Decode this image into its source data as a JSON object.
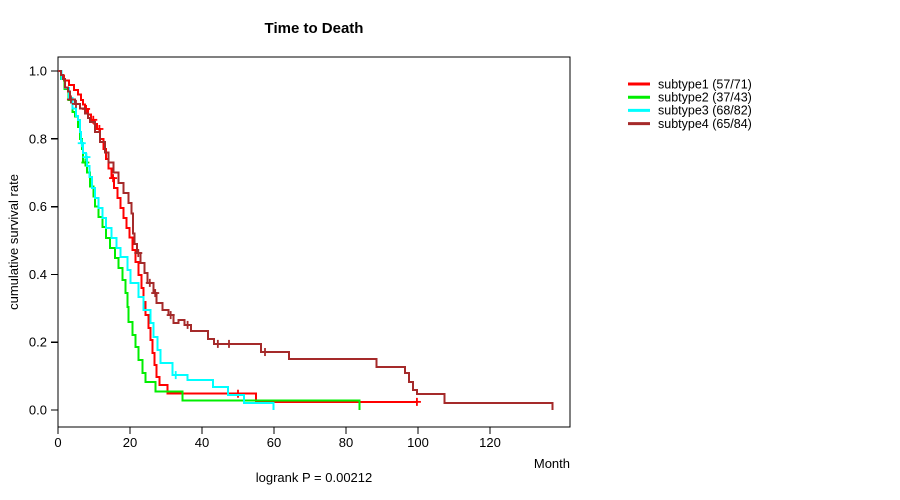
{
  "title": "Time to Death",
  "annotation": "logrank P = 0.00212",
  "axes": {
    "x_label": "Month",
    "y_label": "cumulative survival rate",
    "x_ticks": [
      0,
      20,
      40,
      60,
      80,
      100,
      120
    ],
    "y_ticks": [
      "0.0",
      "0.2",
      "0.4",
      "0.6",
      "0.8",
      "1.0"
    ]
  },
  "legend": [
    {
      "label": "subtype1 (57/71)",
      "color": "#FF0000"
    },
    {
      "label": "subtype2 (37/43)",
      "color": "#00EE00"
    },
    {
      "label": "subtype3 (68/82)",
      "color": "#00FFFF"
    },
    {
      "label": "subtype4 (65/84)",
      "color": "#A52A2A"
    }
  ],
  "chart_data": {
    "type": "line",
    "variant": "kaplan-meier-step",
    "title": "Time to Death",
    "xlabel": "Month",
    "ylabel": "cumulative survival rate",
    "xlim": [
      0,
      142
    ],
    "ylim": [
      0,
      1
    ],
    "grid": false,
    "legend_position": "outside-top-right",
    "series": [
      {
        "name": "subtype1",
        "events": "57/71",
        "color": "#FF0000",
        "points": [
          [
            0,
            1.0
          ],
          [
            0.8,
            0.986
          ],
          [
            1.7,
            0.972
          ],
          [
            3.1,
            0.958
          ],
          [
            4.5,
            0.944
          ],
          [
            5.6,
            0.93
          ],
          [
            6.4,
            0.915
          ],
          [
            7.0,
            0.901
          ],
          [
            7.5,
            0.888
          ],
          [
            8.4,
            0.872
          ],
          [
            9.2,
            0.856
          ],
          [
            10.1,
            0.843
          ],
          [
            10.9,
            0.829
          ],
          [
            11.7,
            0.8
          ],
          [
            12.6,
            0.77
          ],
          [
            13.4,
            0.741
          ],
          [
            14.0,
            0.712
          ],
          [
            14.8,
            0.684
          ],
          [
            15.6,
            0.655
          ],
          [
            16.5,
            0.625
          ],
          [
            17.3,
            0.596
          ],
          [
            18.2,
            0.566
          ],
          [
            19.0,
            0.537
          ],
          [
            19.8,
            0.509
          ],
          [
            20.7,
            0.472
          ],
          [
            21.5,
            0.437
          ],
          [
            22.3,
            0.398
          ],
          [
            23.2,
            0.36
          ],
          [
            23.7,
            0.319
          ],
          [
            24.3,
            0.28
          ],
          [
            25.1,
            0.242
          ],
          [
            25.7,
            0.207
          ],
          [
            26.2,
            0.168
          ],
          [
            26.8,
            0.133
          ],
          [
            27.4,
            0.097
          ],
          [
            28.2,
            0.074
          ],
          [
            30.4,
            0.048
          ],
          [
            55.0,
            0.024
          ],
          [
            99.7,
            0.024
          ]
        ],
        "censors": [
          [
            7.8,
            0.888
          ],
          [
            9.8,
            0.856
          ],
          [
            11.5,
            0.829
          ],
          [
            15.3,
            0.684
          ],
          [
            50.0,
            0.048
          ],
          [
            99.7,
            0.024
          ]
        ]
      },
      {
        "name": "subtype2",
        "events": "37/43",
        "color": "#00EE00",
        "points": [
          [
            0,
            1.0
          ],
          [
            0.9,
            0.977
          ],
          [
            1.8,
            0.947
          ],
          [
            2.9,
            0.914
          ],
          [
            4.0,
            0.879
          ],
          [
            4.7,
            0.866
          ],
          [
            5.6,
            0.835
          ],
          [
            6.1,
            0.8
          ],
          [
            6.7,
            0.77
          ],
          [
            7.0,
            0.73
          ],
          [
            8.1,
            0.7
          ],
          [
            8.9,
            0.66
          ],
          [
            9.8,
            0.63
          ],
          [
            10.3,
            0.6
          ],
          [
            11.2,
            0.57
          ],
          [
            12.3,
            0.54
          ],
          [
            13.4,
            0.508
          ],
          [
            14.5,
            0.478
          ],
          [
            15.9,
            0.448
          ],
          [
            16.8,
            0.419
          ],
          [
            17.9,
            0.384
          ],
          [
            18.7,
            0.345
          ],
          [
            19.3,
            0.304
          ],
          [
            19.6,
            0.26
          ],
          [
            20.7,
            0.221
          ],
          [
            21.5,
            0.186
          ],
          [
            22.3,
            0.147
          ],
          [
            23.5,
            0.109
          ],
          [
            24.3,
            0.083
          ],
          [
            27.1,
            0.055
          ],
          [
            34.6,
            0.028
          ],
          [
            83.8,
            0.0
          ]
        ],
        "censors": [
          [
            7.6,
            0.73
          ]
        ]
      },
      {
        "name": "subtype3",
        "events": "68/82",
        "color": "#00FFFF",
        "points": [
          [
            0,
            1.0
          ],
          [
            1.0,
            0.976
          ],
          [
            2.0,
            0.95
          ],
          [
            3.0,
            0.92
          ],
          [
            4.0,
            0.89
          ],
          [
            5.0,
            0.867
          ],
          [
            5.6,
            0.855
          ],
          [
            6.1,
            0.82
          ],
          [
            6.4,
            0.787
          ],
          [
            7.0,
            0.758
          ],
          [
            7.8,
            0.746
          ],
          [
            8.1,
            0.72
          ],
          [
            8.7,
            0.687
          ],
          [
            9.5,
            0.655
          ],
          [
            10.3,
            0.625
          ],
          [
            11.2,
            0.596
          ],
          [
            12.3,
            0.567
          ],
          [
            13.4,
            0.537
          ],
          [
            14.8,
            0.508
          ],
          [
            16.2,
            0.478
          ],
          [
            17.3,
            0.451
          ],
          [
            19.3,
            0.413
          ],
          [
            20.1,
            0.375
          ],
          [
            22.3,
            0.333
          ],
          [
            23.7,
            0.295
          ],
          [
            25.7,
            0.257
          ],
          [
            26.5,
            0.215
          ],
          [
            27.7,
            0.177
          ],
          [
            28.5,
            0.139
          ],
          [
            31.8,
            0.103
          ],
          [
            36.0,
            0.089
          ],
          [
            43.0,
            0.068
          ],
          [
            47.2,
            0.044
          ],
          [
            51.7,
            0.021
          ],
          [
            59.8,
            0.0
          ]
        ],
        "censors": [
          [
            6.6,
            0.787
          ],
          [
            7.9,
            0.746
          ],
          [
            32.7,
            0.103
          ]
        ]
      },
      {
        "name": "subtype4",
        "events": "65/84",
        "color": "#A52A2A",
        "points": [
          [
            0,
            1.0
          ],
          [
            0.8,
            0.988
          ],
          [
            1.4,
            0.976
          ],
          [
            2.0,
            0.952
          ],
          [
            2.8,
            0.94
          ],
          [
            3.4,
            0.916
          ],
          [
            4.7,
            0.903
          ],
          [
            6.1,
            0.89
          ],
          [
            7.5,
            0.875
          ],
          [
            8.4,
            0.861
          ],
          [
            8.9,
            0.85
          ],
          [
            10.3,
            0.82
          ],
          [
            11.7,
            0.79
          ],
          [
            13.1,
            0.76
          ],
          [
            14.0,
            0.73
          ],
          [
            15.4,
            0.7
          ],
          [
            16.8,
            0.67
          ],
          [
            18.2,
            0.64
          ],
          [
            19.6,
            0.61
          ],
          [
            20.4,
            0.58
          ],
          [
            20.9,
            0.52
          ],
          [
            21.3,
            0.49
          ],
          [
            22.0,
            0.463
          ],
          [
            22.9,
            0.434
          ],
          [
            24.0,
            0.404
          ],
          [
            24.9,
            0.375
          ],
          [
            26.5,
            0.345
          ],
          [
            27.4,
            0.316
          ],
          [
            29.0,
            0.295
          ],
          [
            30.7,
            0.28
          ],
          [
            32.1,
            0.257
          ],
          [
            33.5,
            0.266
          ],
          [
            35.2,
            0.251
          ],
          [
            36.9,
            0.233
          ],
          [
            41.6,
            0.209
          ],
          [
            43.3,
            0.195
          ],
          [
            56.4,
            0.171
          ],
          [
            64.2,
            0.15
          ],
          [
            88.5,
            0.127
          ],
          [
            96.4,
            0.109
          ],
          [
            97.5,
            0.083
          ],
          [
            98.6,
            0.059
          ],
          [
            99.7,
            0.047
          ],
          [
            107.4,
            0.021
          ],
          [
            137.4,
            0.0
          ]
        ],
        "censors": [
          [
            3.6,
            0.916
          ],
          [
            5.0,
            0.903
          ],
          [
            22.3,
            0.463
          ],
          [
            25.5,
            0.375
          ],
          [
            27.0,
            0.345
          ],
          [
            31.3,
            0.28
          ],
          [
            36.0,
            0.251
          ],
          [
            44.4,
            0.195
          ],
          [
            47.5,
            0.195
          ],
          [
            57.5,
            0.171
          ]
        ]
      }
    ]
  }
}
